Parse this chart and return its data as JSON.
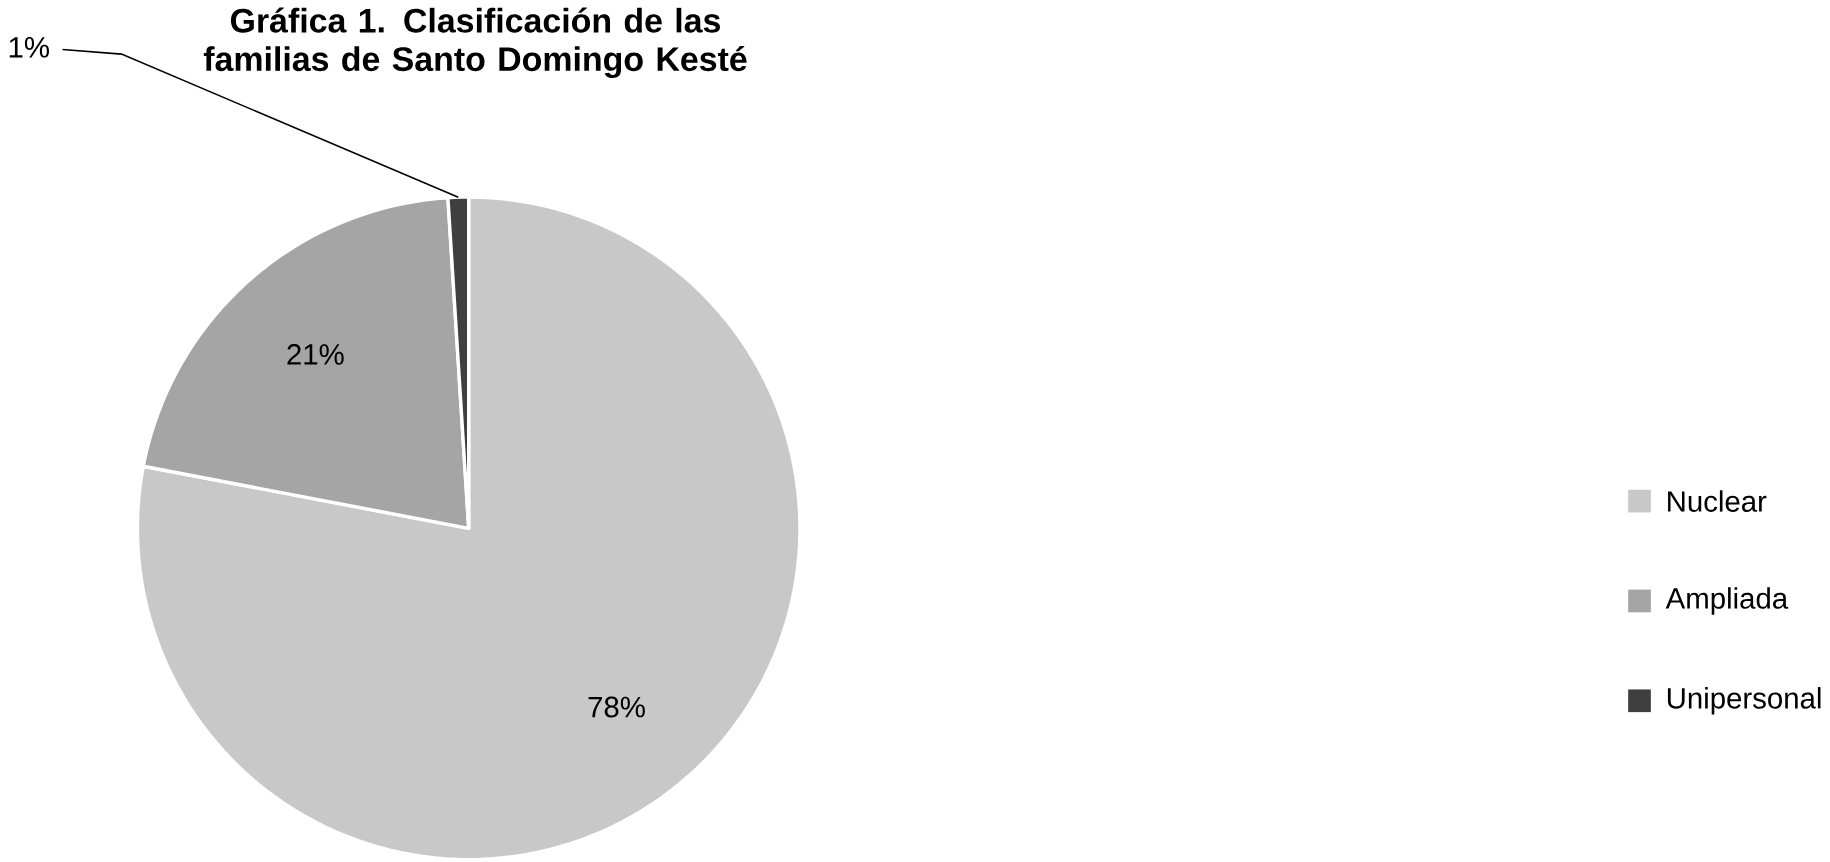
{
  "chart_data": {
    "type": "pie",
    "title": "Gráfica 1. Clasificación de las familias de Santo Domingo Kesté",
    "categories": [
      "Nuclear",
      "Ampliada",
      "Unipersonal"
    ],
    "values": [
      78,
      21,
      1
    ],
    "value_labels": [
      "78%",
      "21%",
      "1%"
    ],
    "colors": [
      "#c8c8c8",
      "#a5a5a5",
      "#3f3f3f"
    ],
    "legend": "right"
  }
}
